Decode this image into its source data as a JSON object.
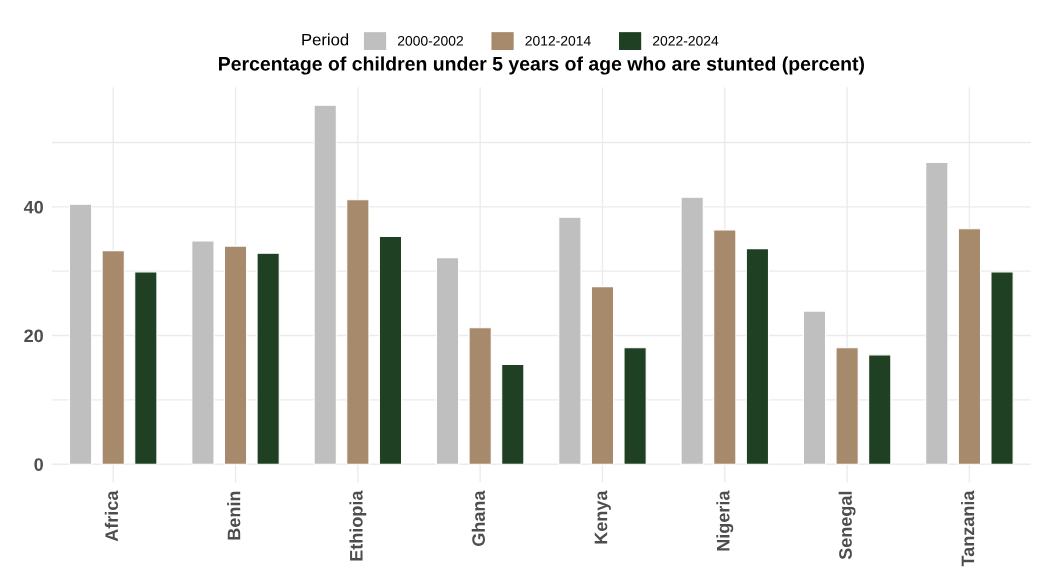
{
  "chart_data": {
    "type": "bar",
    "title": "Percentage of children under 5 years of age who are stunted (percent)",
    "legend_title": "Period",
    "legend": "top",
    "categories": [
      "Africa",
      "Benin",
      "Ethiopia",
      "Ghana",
      "Kenya",
      "Nigeria",
      "Senegal",
      "Tanzania"
    ],
    "series": [
      {
        "name": "2000-2002",
        "color": "#bfbfbf",
        "values": [
          40.4,
          34.7,
          55.8,
          32.1,
          38.4,
          41.5,
          23.8,
          46.9
        ]
      },
      {
        "name": "2012-2014",
        "color": "#a68a6b",
        "values": [
          33.2,
          33.9,
          41.1,
          21.2,
          27.6,
          36.4,
          18.1,
          36.6
        ]
      },
      {
        "name": "2022-2024",
        "color": "#1f4023",
        "values": [
          29.9,
          32.8,
          35.4,
          15.5,
          18.1,
          33.5,
          17.0,
          29.9
        ]
      }
    ],
    "ylim": [
      -2.8,
      58.6
    ],
    "yticks": [
      0,
      {
        "value": 10,
        "label": null
      },
      20,
      {
        "value": 30,
        "label": null
      },
      40,
      {
        "value": 50,
        "label": null
      }
    ],
    "grid": true
  }
}
